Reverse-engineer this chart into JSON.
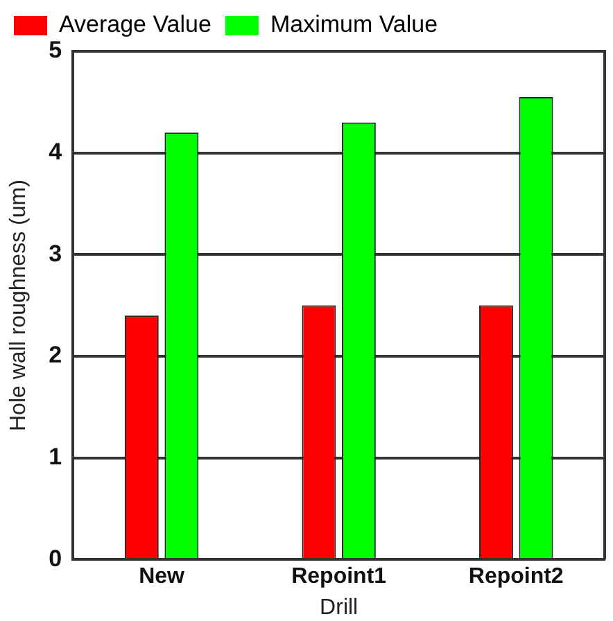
{
  "chart_data": {
    "type": "bar",
    "xlabel": "Drill",
    "ylabel": "Hole wall roughness (um)",
    "categories": [
      "New",
      "Repoint1",
      "Repoint2"
    ],
    "series": [
      {
        "name": "Average Value",
        "color": "#ff0000",
        "values": [
          2.4,
          2.5,
          2.5
        ]
      },
      {
        "name": "Maximum Value",
        "color": "#00ff00",
        "values": [
          4.2,
          4.3,
          4.55
        ]
      }
    ],
    "ylim": [
      0,
      5
    ],
    "yticks": [
      0,
      1,
      2,
      3,
      4,
      5
    ],
    "grid": "y",
    "legend": "top left"
  }
}
